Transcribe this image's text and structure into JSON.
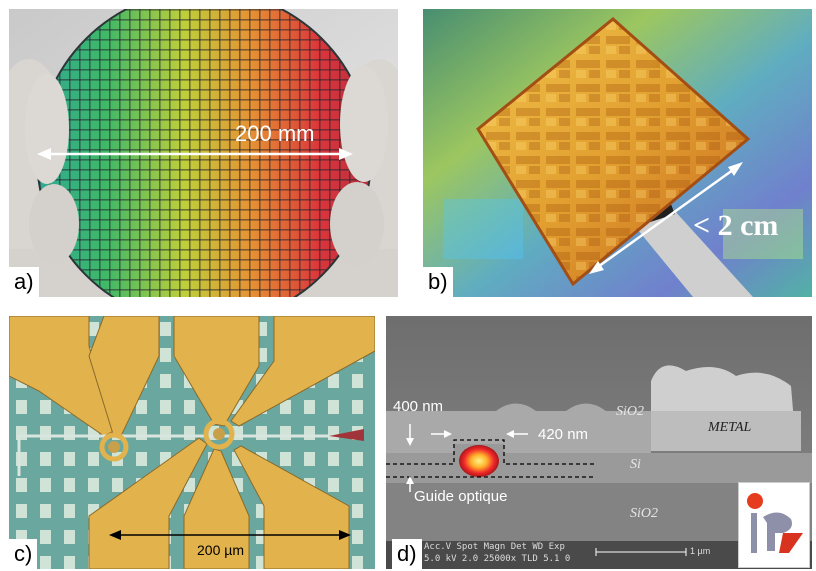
{
  "panels": {
    "a": {
      "label": "a)",
      "scale_text": "200 mm"
    },
    "b": {
      "label": "b)",
      "scale_text": "< 2 cm"
    },
    "c": {
      "label": "c)",
      "scale_text": "200 µm"
    },
    "d": {
      "label": "d)",
      "height_text": "400 nm",
      "width_text": "420 nm",
      "waveguide_text": "Guide optique",
      "layer_top": "SiO2",
      "layer_si": "Si",
      "layer_bottom": "SiO2",
      "metal_text": "METAL",
      "sem_info_line1": "Acc.V  Spot Magn    Det  WD  Exp",
      "sem_info_line2": "5.0 kV 2.0   25000x  TLD 5.1   0",
      "sem_scale": "1 µm"
    }
  },
  "logo": "iof-logo",
  "colors": {
    "wafer_left": "#1f9f9a",
    "wafer_mid": "#c9d02a",
    "wafer_right": "#d6202a",
    "chip_gold": "#e0a83a",
    "pcb_green": "#6fa79c",
    "pad_gold": "#e3b04b",
    "sem_gray": "#8d8d8d"
  }
}
